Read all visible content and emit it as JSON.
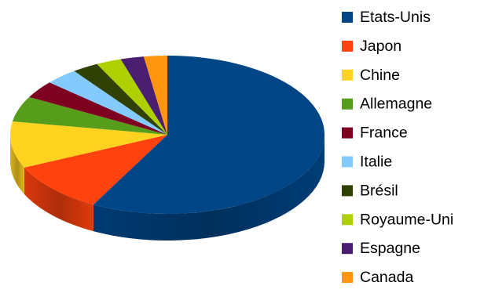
{
  "chart_data": {
    "type": "pie",
    "title": "",
    "legend_position": "right",
    "three_d": true,
    "start_angle_deg": 0,
    "direction": "clockwise",
    "series": [
      {
        "categories": [
          "Etats-Unis",
          "Japon",
          "Chine",
          "Allemagne",
          "France",
          "Italie",
          "Brésil",
          "Royaume-Uni",
          "Espagne",
          "Canada"
        ],
        "values": [
          57.8,
          10.4,
          9.5,
          5.2,
          3.6,
          3.4,
          2.7,
          2.6,
          2.4,
          2.4
        ],
        "colors": [
          "#004586",
          "#ff420e",
          "#ffd320",
          "#579d1c",
          "#7e0021",
          "#83caff",
          "#314004",
          "#aecf00",
          "#4b1f6f",
          "#ff950e"
        ]
      }
    ]
  }
}
